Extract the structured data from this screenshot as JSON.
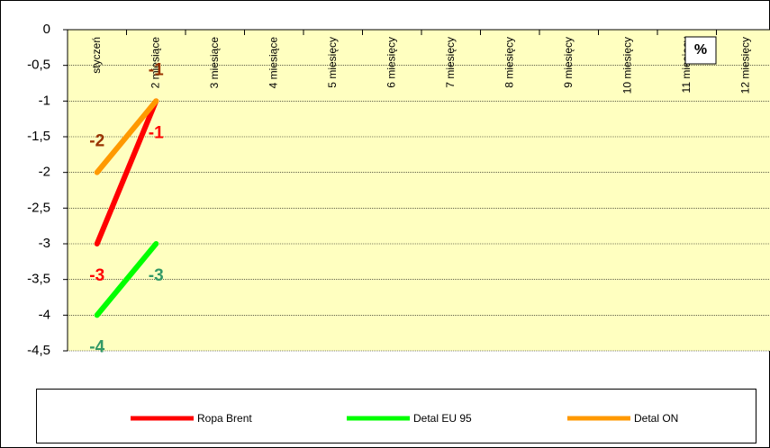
{
  "chart_data": {
    "type": "line",
    "annotation": "%",
    "categories": [
      "styczeń",
      "2 miesiące",
      "3 miesiące",
      "4 miesiące",
      "5 miesięcy",
      "6 miesięcy",
      "7 miesięcy",
      "8 miesięcy",
      "9 miesięcy",
      "10 miesięcy",
      "11 miesięcy",
      "12 miesięcy"
    ],
    "series": [
      {
        "name": "Ropa Brent",
        "color": "#ff0000",
        "label_color": "#ff0000",
        "label_position": "below",
        "values": [
          -3,
          -1,
          null,
          null,
          null,
          null,
          null,
          null,
          null,
          null,
          null,
          null
        ]
      },
      {
        "name": "Detal EU 95",
        "color": "#00ff00",
        "label_color": "#339966",
        "label_position": "below",
        "values": [
          -4,
          -3,
          null,
          null,
          null,
          null,
          null,
          null,
          null,
          null,
          null,
          null
        ]
      },
      {
        "name": "Detal ON",
        "color": "#ff9900",
        "label_color": "#993300",
        "label_position": "above",
        "values": [
          -2,
          -1,
          null,
          null,
          null,
          null,
          null,
          null,
          null,
          null,
          null,
          null
        ]
      }
    ],
    "ylim": [
      -4.5,
      0
    ],
    "yticks": [
      0,
      {
        "value": -0.5,
        "label": "-0,5"
      },
      -1,
      {
        "value": -1.5,
        "label": "-1,5"
      },
      -2,
      {
        "value": -2.5,
        "label": "-2,5"
      },
      -3,
      {
        "value": -3.5,
        "label": "-3,5"
      },
      -4,
      {
        "value": -4.5,
        "label": "-4,5"
      }
    ],
    "grid": true,
    "legend": "bottom"
  }
}
